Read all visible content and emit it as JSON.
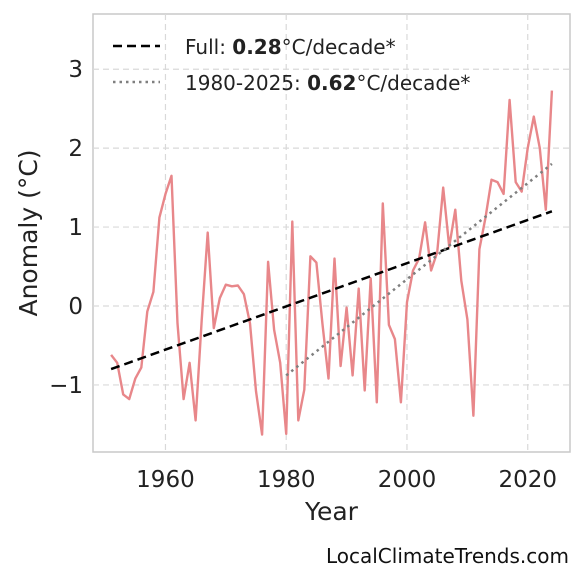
{
  "chart_data": {
    "type": "line",
    "xlabel": "Year",
    "ylabel": "Anomaly (°C)",
    "xlim": [
      1948,
      2027
    ],
    "ylim": [
      -1.85,
      3.7
    ],
    "x_ticks": [
      1960,
      1980,
      2000,
      2020
    ],
    "y_ticks": [
      -1,
      0,
      1,
      2,
      3
    ],
    "y_tick_labels": [
      "−1",
      "0",
      "1",
      "2",
      "3"
    ],
    "grid": true,
    "legend_position": "top-left",
    "series": [
      {
        "style": "solid",
        "color": "#e8878a",
        "x": [
          1951,
          1952,
          1953,
          1954,
          1955,
          1956,
          1957,
          1958,
          1959,
          1960,
          1961,
          1962,
          1963,
          1964,
          1965,
          1966,
          1967,
          1968,
          1969,
          1970,
          1971,
          1972,
          1973,
          1974,
          1975,
          1976,
          1977,
          1978,
          1979,
          1980,
          1981,
          1982,
          1983,
          1984,
          1985,
          1986,
          1987,
          1988,
          1989,
          1990,
          1991,
          1992,
          1993,
          1994,
          1995,
          1996,
          1997,
          1998,
          1999,
          2000,
          2001,
          2002,
          2003,
          2004,
          2005,
          2006,
          2007,
          2008,
          2009,
          2010,
          2011,
          2012,
          2013,
          2014,
          2015,
          2016,
          2017,
          2018,
          2019,
          2020,
          2021,
          2022,
          2023,
          2024
        ],
        "values": [
          -0.62,
          -0.72,
          -1.12,
          -1.18,
          -0.92,
          -0.78,
          -0.07,
          0.18,
          1.12,
          1.42,
          1.65,
          -0.22,
          -1.18,
          -0.72,
          -1.45,
          -0.18,
          0.93,
          -0.28,
          0.1,
          0.27,
          0.25,
          0.26,
          0.15,
          -0.22,
          -1.08,
          -1.63,
          0.56,
          -0.3,
          -0.72,
          -1.62,
          1.07,
          -1.45,
          -1.06,
          0.63,
          0.55,
          -0.22,
          -0.92,
          0.6,
          -0.76,
          -0.02,
          -0.88,
          0.22,
          -1.07,
          0.35,
          -1.22,
          1.3,
          -0.24,
          -0.42,
          -1.22,
          0.05,
          0.45,
          0.6,
          1.06,
          0.45,
          0.68,
          1.5,
          0.75,
          1.22,
          0.32,
          -0.17,
          -1.39,
          0.72,
          1.12,
          1.6,
          1.57,
          1.42,
          2.61,
          1.57,
          1.45,
          2.0,
          2.4,
          2.0,
          1.22,
          2.73
        ]
      },
      {
        "name": "Full",
        "style": "dashed",
        "color": "#000000",
        "x": [
          1951,
          2024
        ],
        "values": [
          -0.8,
          1.2
        ],
        "trend_value": "0.28",
        "trend_unit": "°C/decade*"
      },
      {
        "name": "1980-2025",
        "style": "dotted",
        "color": "#7f7f7f",
        "x": [
          1980,
          2024
        ],
        "values": [
          -0.88,
          1.8
        ],
        "trend_value": "0.62",
        "trend_unit": "°C/decade*"
      }
    ]
  },
  "legend": {
    "full_label": "Full: ",
    "full_value": "0.28",
    "full_unit": "°C/decade*",
    "recent_label": "1980-2025: ",
    "recent_value": "0.62",
    "recent_unit": "°C/decade*"
  },
  "watermark": "LocalClimateTrends.com"
}
